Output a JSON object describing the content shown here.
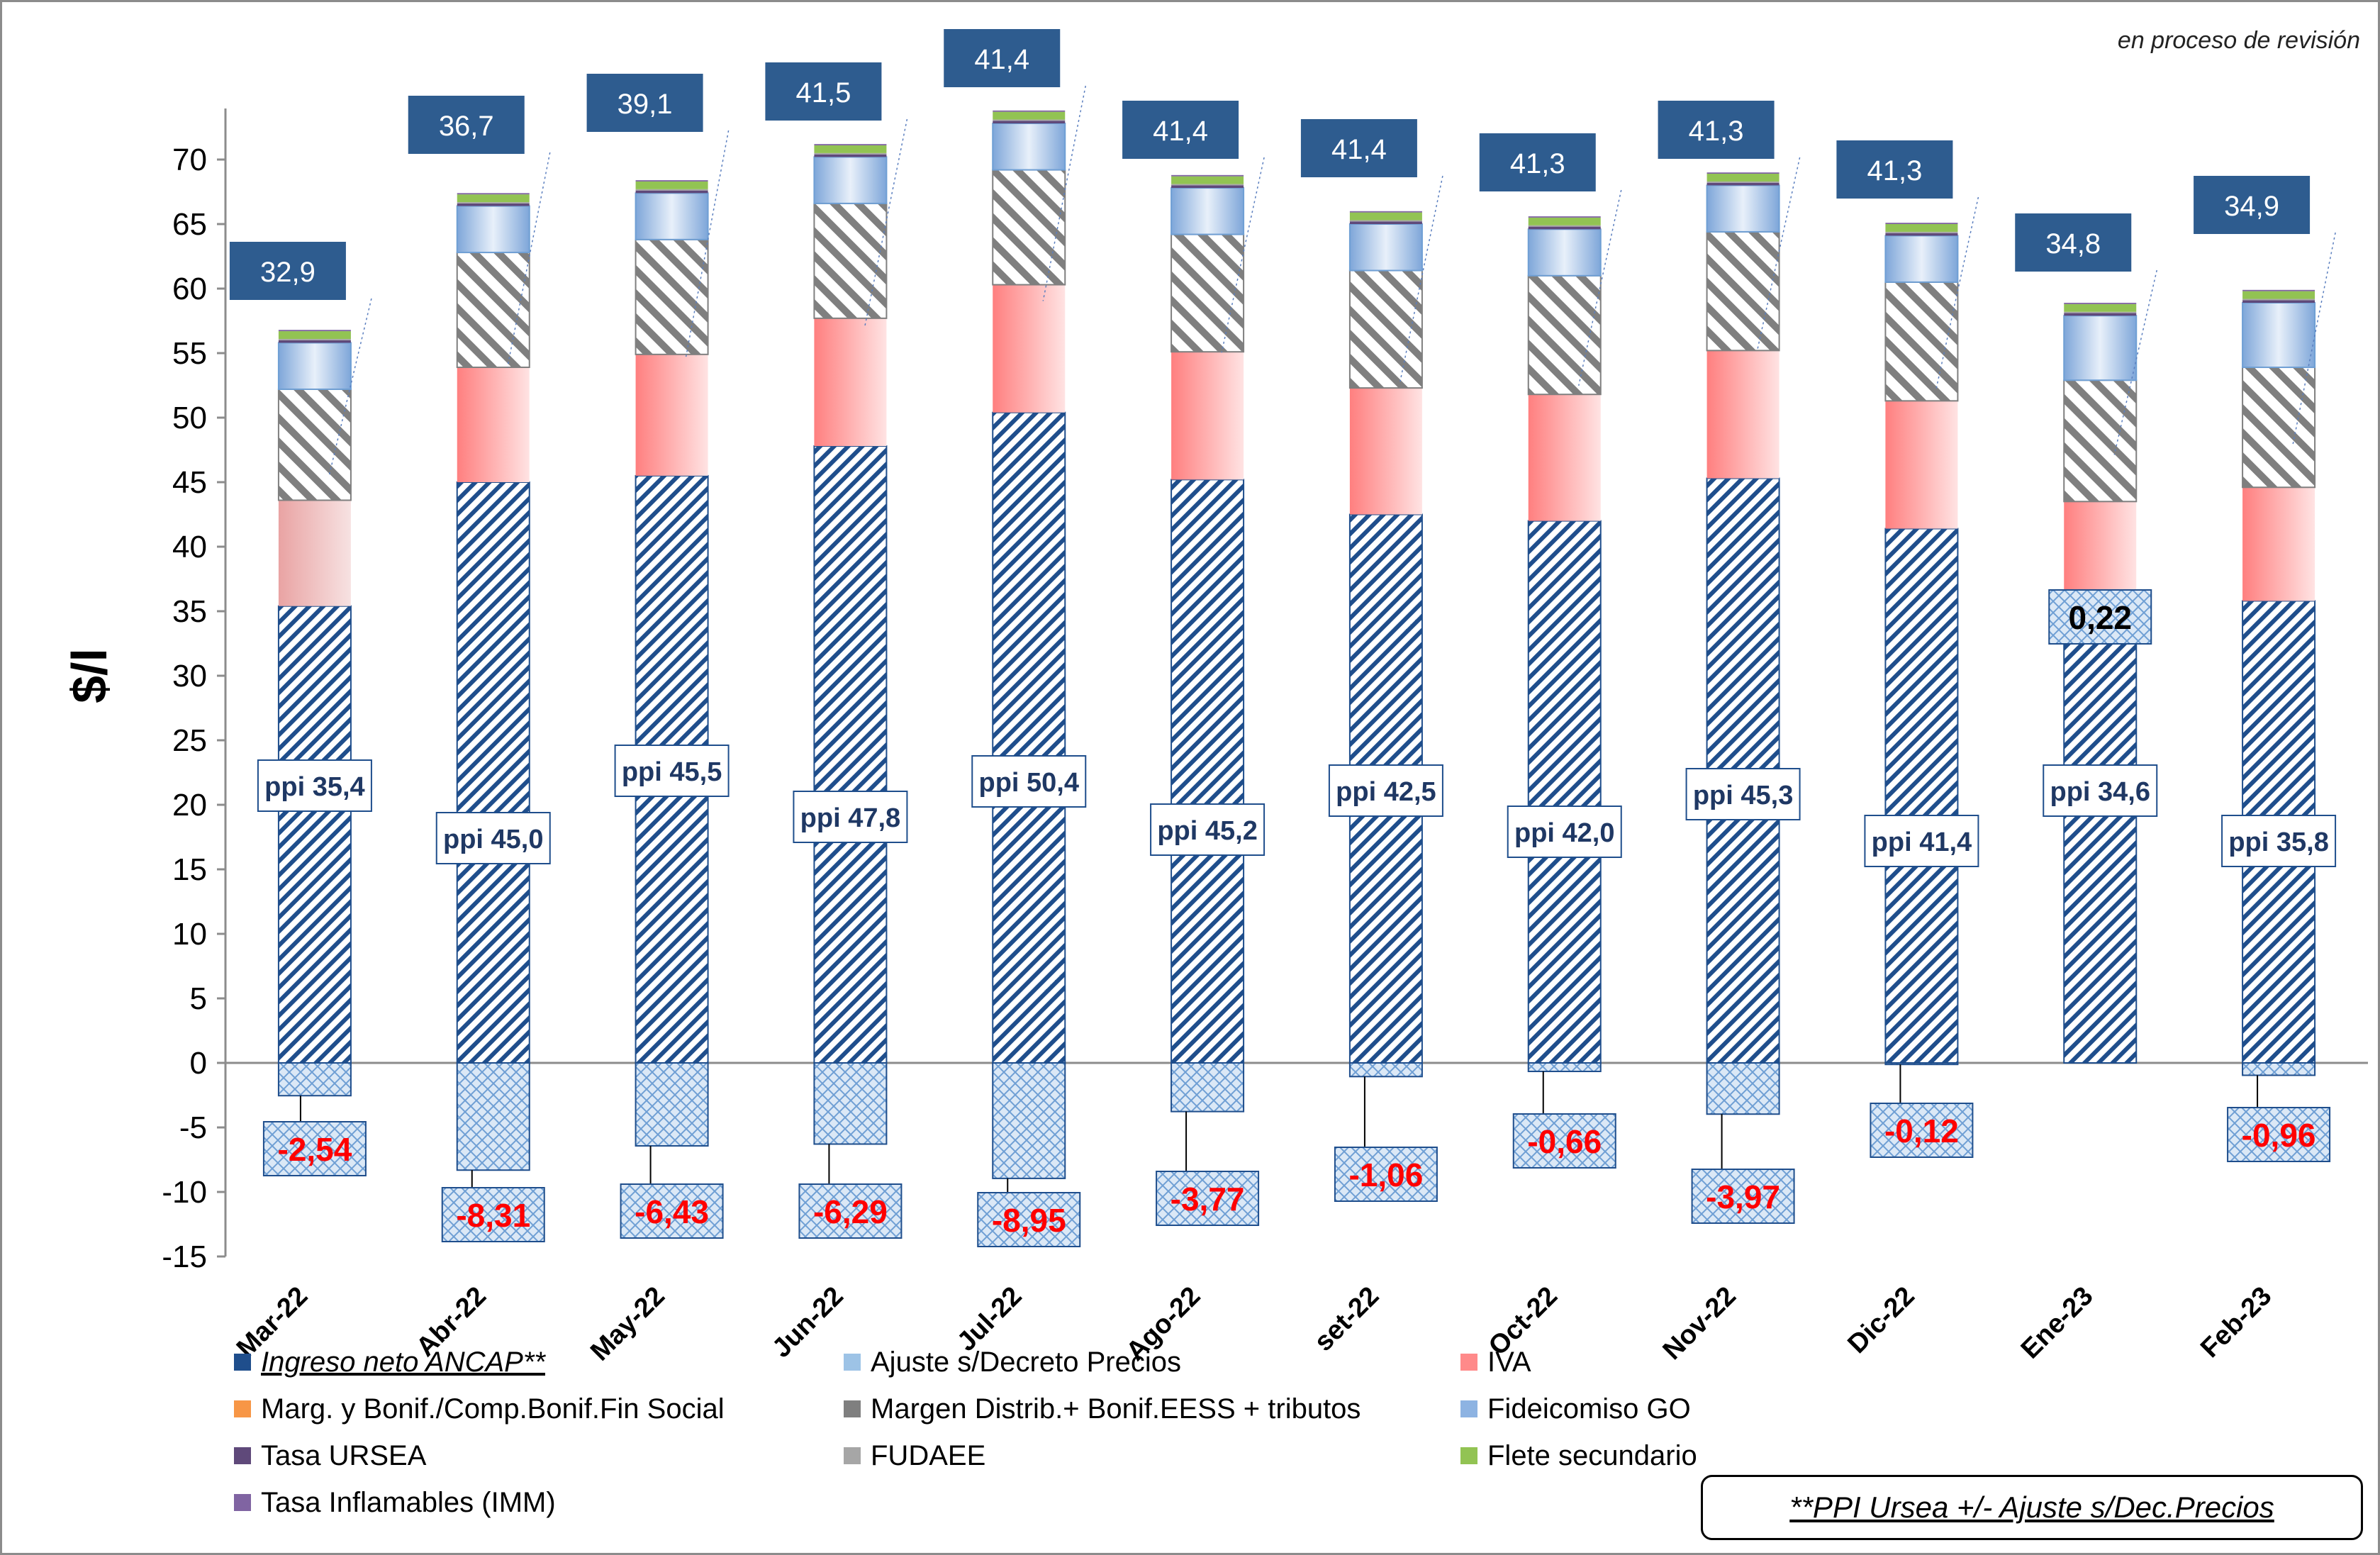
{
  "status_note": "en proceso de revisión",
  "footnote": "**PPI Ursea +/- Ajuste s/Dec.Precios",
  "colors": {
    "ingreso": "#1f4e8c",
    "ajuste": "#9dc3e6",
    "iva": "#ff8a8a",
    "marg": "#f79646",
    "margen_distrib": "#7f7f7f",
    "fideicomiso": "#8db3e2",
    "ursea": "#5f497a",
    "fudaee": "#a6a6a6",
    "flete": "#92c353",
    "imm": "#8064a2",
    "callout": "#2e5c8f",
    "negative_text": "#ff0000"
  },
  "legend": [
    {
      "label": "Ingreso neto ANCAP**",
      "swatch": "#1f4e8c",
      "style": "italic-underline"
    },
    {
      "label": "Ajuste s/Decreto Precios",
      "swatch": "#9dc3e6",
      "style": "normal"
    },
    {
      "label": "IVA",
      "swatch": "#ff8a8a",
      "style": "normal"
    },
    {
      "label": "Marg. y Bonif./Comp.Bonif.Fin Social",
      "swatch": "#f79646",
      "style": "normal"
    },
    {
      "label": "Margen Distrib.+ Bonif.EESS + tributos",
      "swatch": "#7f7f7f",
      "style": "normal"
    },
    {
      "label": "Fideicomiso GO",
      "swatch": "#8db3e2",
      "style": "normal"
    },
    {
      "label": "Tasa URSEA",
      "swatch": "#5f497a",
      "style": "normal"
    },
    {
      "label": "FUDAEE",
      "swatch": "#a6a6a6",
      "style": "normal"
    },
    {
      "label": "Flete secundario",
      "swatch": "#92c353",
      "style": "normal"
    },
    {
      "label": "Tasa Inflamables (IMM)",
      "swatch": "#8064a2",
      "style": "normal"
    }
  ],
  "chart_data": {
    "type": "bar",
    "stacked": true,
    "ylabel": "$/l",
    "ylim": [
      -15,
      70
    ],
    "yticks": [
      -15,
      -10,
      -5,
      0,
      5,
      10,
      15,
      20,
      25,
      30,
      35,
      40,
      45,
      50,
      55,
      60,
      65,
      70
    ],
    "categories": [
      "Mar-22",
      "Abr-22",
      "May-22",
      "Jun-22",
      "Jul-22",
      "Ago-22",
      "set-22",
      "Oct-22",
      "Nov-22",
      "Dic-22",
      "Ene-23",
      "Feb-23"
    ],
    "series": [
      {
        "name": "Ingreso neto ANCAP**",
        "values": [
          35.4,
          45.0,
          45.5,
          47.8,
          50.4,
          45.2,
          42.5,
          42.0,
          45.3,
          41.4,
          34.6,
          35.8
        ]
      },
      {
        "name": "Ajuste s/Decreto Precios",
        "values": [
          -2.54,
          -8.31,
          -6.43,
          -6.29,
          -8.95,
          -3.77,
          -1.06,
          -0.66,
          -3.97,
          -0.12,
          0.22,
          -0.96
        ]
      },
      {
        "name": "IVA",
        "values": [
          8.2,
          8.9,
          9.4,
          9.9,
          9.9,
          9.9,
          9.8,
          9.8,
          9.9,
          9.9,
          8.9,
          8.8
        ]
      },
      {
        "name": "Marg. y Bonif./Comp.Bonif.Fin Social",
        "values": [
          0,
          0,
          0,
          0,
          0,
          0,
          0,
          0,
          0,
          0,
          0,
          0
        ]
      },
      {
        "name": "Margen Distrib.+ Bonif.EESS + tributos",
        "values": [
          8.6,
          8.9,
          8.9,
          8.9,
          8.9,
          9.1,
          9.1,
          9.2,
          9.2,
          9.2,
          9.4,
          9.3
        ]
      },
      {
        "name": "Fideicomiso GO",
        "values": [
          3.6,
          3.6,
          3.6,
          3.6,
          3.6,
          3.6,
          3.6,
          3.6,
          3.6,
          3.6,
          5.0,
          5.0
        ]
      },
      {
        "name": "Tasa URSEA",
        "values": [
          0.2,
          0.2,
          0.2,
          0.2,
          0.2,
          0.2,
          0.2,
          0.2,
          0.2,
          0.2,
          0.2,
          0.2
        ]
      },
      {
        "name": "FUDAEE",
        "values": [
          0.1,
          0.1,
          0.1,
          0.1,
          0.1,
          0.1,
          0.1,
          0.1,
          0.1,
          0.1,
          0.1,
          0.1
        ]
      },
      {
        "name": "Flete secundario",
        "values": [
          0.6,
          0.6,
          0.6,
          0.6,
          0.6,
          0.6,
          0.6,
          0.6,
          0.6,
          0.6,
          0.6,
          0.6
        ]
      },
      {
        "name": "Tasa Inflamables (IMM)",
        "values": [
          0.1,
          0.1,
          0.1,
          0.1,
          0.1,
          0.1,
          0.1,
          0.1,
          0.1,
          0.1,
          0.1,
          0.1
        ]
      }
    ],
    "ppi_labels": [
      "ppi 35,4",
      "ppi 45,0",
      "ppi 45,5",
      "ppi 47,8",
      "ppi 50,4",
      "ppi 45,2",
      "ppi 42,5",
      "ppi 42,0",
      "ppi 45,3",
      "ppi 41,4",
      "ppi 34,6",
      "ppi 35,8"
    ],
    "ajuste_labels": [
      "-2,54",
      "-8,31",
      "-6,43",
      "-6,29",
      "-8,95",
      "-3,77",
      "-1,06",
      "-0,66",
      "-3,97",
      "-0,12",
      "0,22",
      "-0,96"
    ],
    "total_tax_labels": [
      "32,9",
      "36,7",
      "39,1",
      "41,5",
      "41,4",
      "41,4",
      "41,4",
      "41,3",
      "41,3",
      "41,3",
      "34,8",
      "34,9"
    ]
  }
}
